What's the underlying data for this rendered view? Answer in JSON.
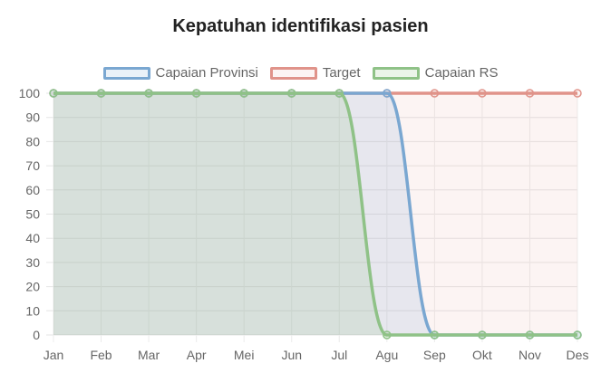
{
  "chart_data": {
    "type": "line",
    "title": "Kepatuhan identifikasi pasien",
    "categories": [
      "Jan",
      "Feb",
      "Mar",
      "Apr",
      "Mei",
      "Jun",
      "Jul",
      "Agu",
      "Sep",
      "Okt",
      "Nov",
      "Des"
    ],
    "series": [
      {
        "name": "Capaian Provinsi",
        "color": "#7aa7d1",
        "fill": "rgba(122,167,209,0.16)",
        "values": [
          100,
          100,
          100,
          100,
          100,
          100,
          100,
          100,
          0,
          0,
          0,
          0
        ]
      },
      {
        "name": "Target",
        "color": "#e0938a",
        "fill": "rgba(224,147,138,0.10)",
        "values": [
          100,
          100,
          100,
          100,
          100,
          100,
          100,
          100,
          100,
          100,
          100,
          100
        ]
      },
      {
        "name": "Capaian RS",
        "color": "#8fc287",
        "fill": "rgba(143,194,135,0.18)",
        "values": [
          100,
          100,
          100,
          100,
          100,
          100,
          100,
          0,
          0,
          0,
          0,
          0
        ]
      }
    ],
    "ylim": [
      0,
      100
    ],
    "yticks": [
      0,
      10,
      20,
      30,
      40,
      50,
      60,
      70,
      80,
      90,
      100
    ],
    "grid": true,
    "legend": "top"
  }
}
